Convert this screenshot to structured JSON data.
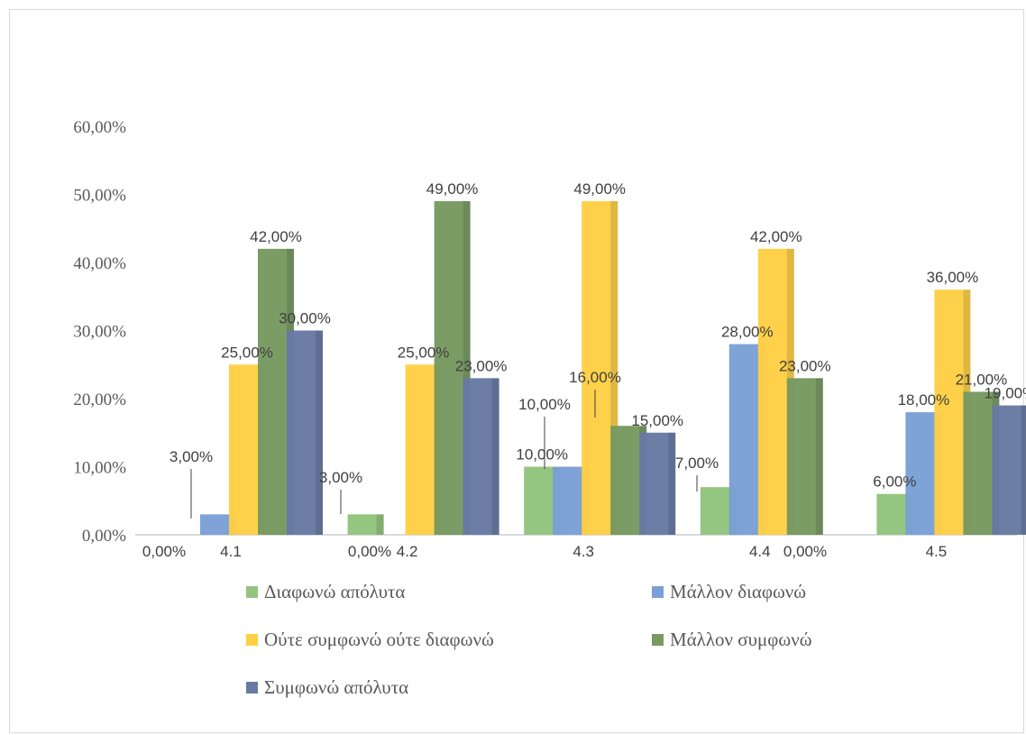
{
  "chart_data": {
    "type": "bar",
    "categories": [
      "4.1",
      "4.2",
      "4.3",
      "4.4",
      "4.5"
    ],
    "series": [
      {
        "name": "Διαφωνώ απόλυτα",
        "color": "#92c47d",
        "values": [
          0,
          3,
          10,
          7,
          6
        ]
      },
      {
        "name": "Μάλλον διαφωνώ",
        "color": "#7b9fd6",
        "values": [
          3,
          0,
          10,
          28,
          18
        ]
      },
      {
        "name": "Ούτε συμφωνώ ούτε διαφωνώ",
        "color": "#ffd045",
        "values": [
          25,
          25,
          49,
          42,
          36
        ]
      },
      {
        "name": "Μάλλον συμφωνώ",
        "color": "#789961",
        "values": [
          42,
          49,
          16,
          23,
          21
        ]
      },
      {
        "name": "Συμφωνώ απόλυτα",
        "color": "#687aa3",
        "values": [
          30,
          23,
          15,
          0,
          19
        ]
      }
    ],
    "data_labels": [
      [
        "0,00%",
        "3,00%",
        "25,00%",
        "42,00%",
        "30,00%"
      ],
      [
        "3,00%",
        "0,00%",
        "25,00%",
        "49,00%",
        "23,00%"
      ],
      [
        "10,00%",
        "10,00%",
        "49,00%",
        "16,00%",
        "15,00%"
      ],
      [
        "7,00%",
        "28,00%",
        "42,00%",
        "23,00%",
        "0,00%"
      ],
      [
        "6,00%",
        "18,00%",
        "36,00%",
        "21,00%",
        "19,00%"
      ]
    ],
    "yticks": [
      "0,00%",
      "10,00%",
      "20,00%",
      "30,00%",
      "40,00%",
      "50,00%",
      "60,00%"
    ],
    "ylim": [
      0,
      60
    ],
    "title": "",
    "xlabel": "",
    "ylabel": "",
    "grid": false,
    "legend_position": "bottom"
  }
}
